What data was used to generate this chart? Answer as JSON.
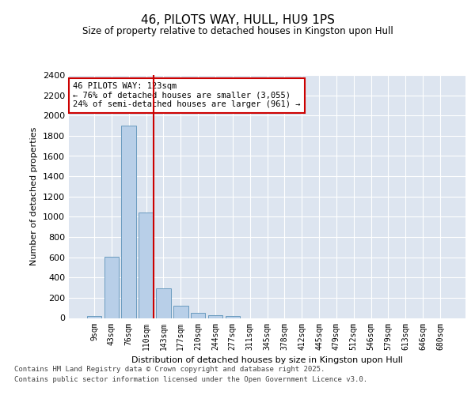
{
  "title": "46, PILOTS WAY, HULL, HU9 1PS",
  "subtitle": "Size of property relative to detached houses in Kingston upon Hull",
  "xlabel": "Distribution of detached houses by size in Kingston upon Hull",
  "ylabel": "Number of detached properties",
  "categories": [
    "9sqm",
    "43sqm",
    "76sqm",
    "110sqm",
    "143sqm",
    "177sqm",
    "210sqm",
    "244sqm",
    "277sqm",
    "311sqm",
    "345sqm",
    "378sqm",
    "412sqm",
    "445sqm",
    "479sqm",
    "512sqm",
    "546sqm",
    "579sqm",
    "613sqm",
    "646sqm",
    "680sqm"
  ],
  "values": [
    20,
    605,
    1900,
    1045,
    295,
    120,
    50,
    30,
    20,
    0,
    0,
    0,
    0,
    0,
    0,
    0,
    0,
    0,
    0,
    0,
    0
  ],
  "bar_color": "#b8cfe8",
  "bar_edge_color": "#6a9bbf",
  "vline_color": "#cc0000",
  "annotation_title": "46 PILOTS WAY: 123sqm",
  "annotation_line2": "← 76% of detached houses are smaller (3,055)",
  "annotation_line3": "24% of semi-detached houses are larger (961) →",
  "annotation_box_color": "#cc0000",
  "ylim": [
    0,
    2400
  ],
  "yticks": [
    0,
    200,
    400,
    600,
    800,
    1000,
    1200,
    1400,
    1600,
    1800,
    2000,
    2200,
    2400
  ],
  "background_color": "#dde5f0",
  "footer_line1": "Contains HM Land Registry data © Crown copyright and database right 2025.",
  "footer_line2": "Contains public sector information licensed under the Open Government Licence v3.0.",
  "title_fontsize": 11,
  "subtitle_fontsize": 8.5,
  "footer_fontsize": 6.5
}
